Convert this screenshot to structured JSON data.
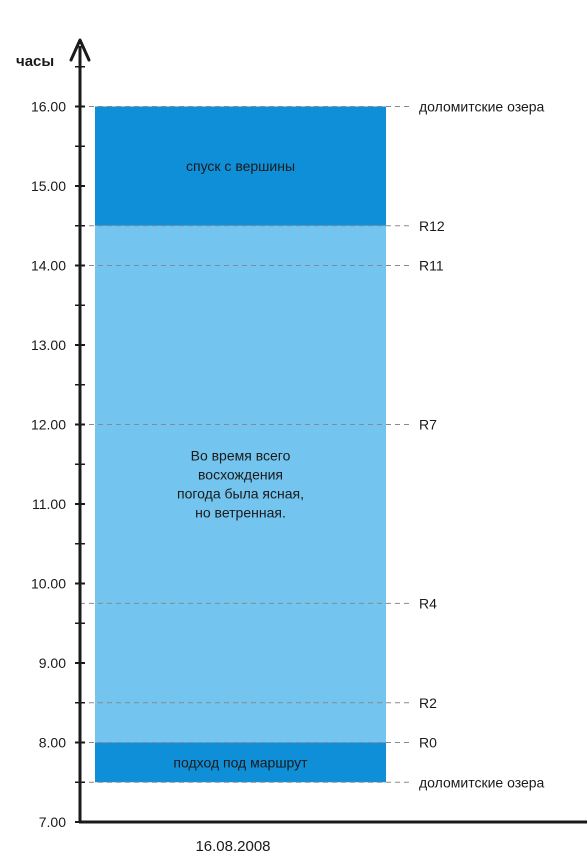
{
  "chart_data": {
    "type": "bar",
    "ylabel": "часы",
    "xlabel": "16.08.2008",
    "ylim": [
      7,
      16.5
    ],
    "y_ticks": [
      "7.00",
      "8.00",
      "9.00",
      "10.00",
      "11.00",
      "12.00",
      "13.00",
      "14.00",
      "15.00",
      "16.00"
    ],
    "segments": [
      {
        "from": 7.5,
        "to": 8.0,
        "text": "подход под маршрут",
        "color": "#0f8fd8"
      },
      {
        "from": 8.0,
        "to": 14.5,
        "text": "Во время всего\nвосхождения\nпогода была ясная,\nно ветренная.",
        "color": "#73c4ee"
      },
      {
        "from": 14.5,
        "to": 16.0,
        "text": "спуск с вершины",
        "color": "#0f8fd8"
      }
    ],
    "markers": [
      {
        "y": 7.5,
        "label": "доломитские озера"
      },
      {
        "y": 8.0,
        "label": "R0"
      },
      {
        "y": 8.5,
        "label": "R2"
      },
      {
        "y": 9.75,
        "label": "R4"
      },
      {
        "y": 12.0,
        "label": "R7"
      },
      {
        "y": 14.0,
        "label": "R11"
      },
      {
        "y": 14.5,
        "label": "R12"
      },
      {
        "y": 16.0,
        "label": "доломитские озера"
      }
    ]
  }
}
